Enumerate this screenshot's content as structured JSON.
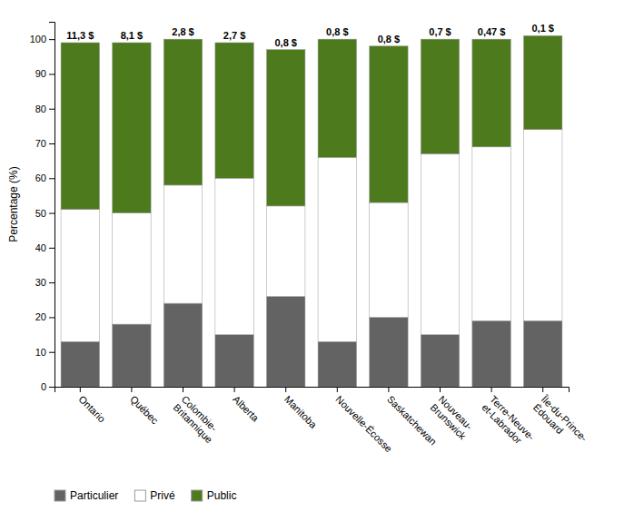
{
  "chart_data": {
    "type": "bar",
    "stacked": true,
    "categories": [
      "Ontario",
      "Québec",
      "Colombie-\nBritannique",
      "Alberta",
      "Manitoba",
      "Nouvelle-Écosse",
      "Saskatchewan",
      "Nouveau-\nBrunswick",
      "Terre-Neuve-\net-Labrador",
      "Île-du-Prince-\nÉdouard"
    ],
    "series": [
      {
        "name": "Particulier",
        "color": "#636363",
        "values": [
          13,
          18,
          24,
          15,
          26,
          13,
          20,
          15,
          19,
          19
        ]
      },
      {
        "name": "Privé",
        "color": "#ffffff",
        "values": [
          38,
          32,
          34,
          45,
          26,
          53,
          33,
          52,
          50,
          55
        ]
      },
      {
        "name": "Public",
        "color": "#4e7a1e",
        "values": [
          48,
          49,
          42,
          39,
          45,
          34,
          45,
          33,
          31,
          27
        ]
      }
    ],
    "annotations": [
      "11,3 $",
      "8,1 $",
      "2,8 $",
      "2,7 $",
      "0,8 $",
      "0,8 $",
      "0,8 $",
      "0,7 $",
      "0,47 $",
      "0,1 $"
    ],
    "ylabel": "Percentage (%)",
    "ylim": [
      0,
      105
    ],
    "yticks": [
      0,
      10,
      20,
      30,
      40,
      50,
      60,
      70,
      80,
      90,
      100
    ],
    "grid": false,
    "legend": "bottom"
  }
}
